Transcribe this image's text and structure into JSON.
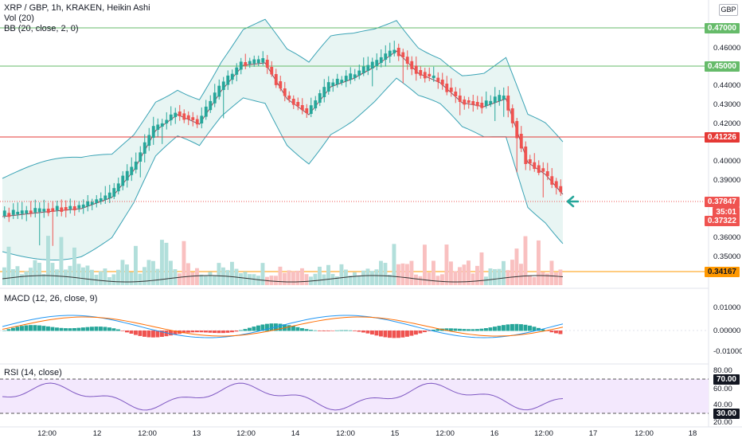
{
  "header": {
    "symbol_line": "XRP / GBP, 1h, KRAKEN, Heikin Ashi",
    "vol_line": "Vol (20)",
    "bb_line": "BB (20, close, 2, 0)",
    "currency": "GBP"
  },
  "macd": {
    "label": "MACD (12, 26, close, 9)",
    "ticks": [
      "0.01000",
      "0.00000",
      "-0.01000"
    ]
  },
  "rsi": {
    "label": "RSI (14, close)",
    "ticks": [
      "80.00",
      "60.00",
      "40.00",
      "20.00"
    ],
    "upper": "70.00",
    "lower": "30.00"
  },
  "price_axis": {
    "ticks": [
      "0.46000",
      "0.44000",
      "0.43000",
      "0.42000",
      "0.40000",
      "0.39000",
      "0.36000",
      "0.35000"
    ],
    "tags": {
      "level_a": "0.47000",
      "level_b": "0.45000",
      "level_c": "0.41226",
      "last": "0.37847",
      "countdown": "35:01",
      "close": "0.37322",
      "level_d": "0.34167"
    }
  },
  "time_axis": [
    "12:00",
    "12",
    "12:00",
    "13",
    "12:00",
    "14",
    "12:00",
    "15",
    "12:00",
    "16",
    "12:00",
    "17",
    "12:00",
    "18"
  ],
  "colors": {
    "up": "#26a69a",
    "down": "#ef5350",
    "bb_fill": "#e8f5f3",
    "bb_line": "#3aa3b5",
    "rsi_fill": "#f3e8fd",
    "green_line": "#66bb6a",
    "red_line": "#e53935",
    "orange_line": "#ff9800"
  },
  "icons": {
    "arrow": "arrow-left-icon"
  }
}
